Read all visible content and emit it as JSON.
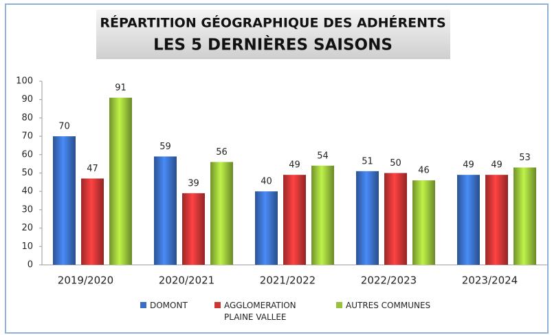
{
  "chart_data": {
    "type": "bar",
    "title": "RÉPARTITION GÉOGRAPHIQUE DES ADHÉRENTS",
    "subtitle": "LES 5 DERNIÈRES SAISONS",
    "categories": [
      "2019/2020",
      "2020/2021",
      "2021/2022",
      "2022/2023",
      "2023/2024"
    ],
    "series": [
      {
        "name": "DOMONT",
        "color": "#3a6fc6",
        "values": [
          70,
          59,
          40,
          51,
          49
        ]
      },
      {
        "name": "AGGLOMERATION PLAINE VALLEE",
        "color": "#cf3535",
        "values": [
          47,
          39,
          49,
          50,
          49
        ]
      },
      {
        "name": "AUTRES COMMUNES",
        "color": "#98c23a",
        "values": [
          91,
          56,
          54,
          46,
          53
        ]
      }
    ],
    "ylim": [
      0,
      100
    ],
    "yticks": [
      0,
      10,
      20,
      30,
      40,
      50,
      60,
      70,
      80,
      90,
      100
    ],
    "grid": false,
    "legend": "bottom"
  }
}
